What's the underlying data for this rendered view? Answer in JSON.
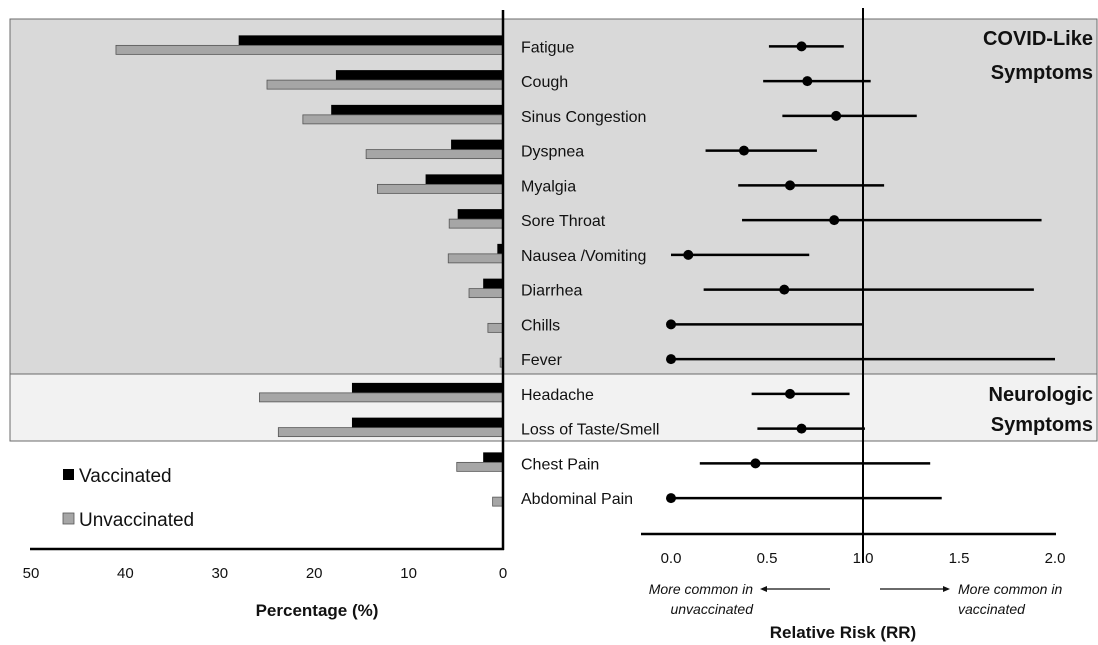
{
  "chart_data": [
    {
      "type": "bar",
      "orientation": "horizontal",
      "direction": "right-to-left",
      "xlabel": "Percentage (%)",
      "xlim": [
        0,
        50
      ],
      "x_ticks": [
        "50",
        "40",
        "30",
        "20",
        "10",
        "0"
      ],
      "categories": [
        "Fatigue",
        "Cough",
        "Sinus Congestion",
        "Dyspnea",
        "Myalgia",
        "Sore Throat",
        "Nausea /Vomiting",
        "Diarrhea",
        "Chills",
        "Fever",
        "Headache",
        "Loss of Taste/Smell",
        "Chest Pain",
        "Abdominal Pain"
      ],
      "series": [
        {
          "name": "Vaccinated",
          "color": "#000000",
          "values": [
            28,
            17.7,
            18.2,
            5.5,
            8.2,
            4.8,
            0.6,
            2.1,
            0,
            0,
            16,
            16,
            2.1,
            0
          ]
        },
        {
          "name": "Unvaccinated",
          "color": "#a6a6a6",
          "values": [
            41,
            25,
            21.2,
            14.5,
            13.3,
            5.7,
            5.8,
            3.6,
            1.6,
            0.3,
            25.8,
            23.8,
            4.9,
            1.1
          ]
        }
      ],
      "legend": {
        "placement": "bottom-left",
        "items": [
          "Vaccinated",
          "Unvaccinated"
        ]
      }
    },
    {
      "type": "scatter",
      "subtype": "forest-plot",
      "xlabel": "Relative Risk (RR)",
      "xlim": [
        0,
        2
      ],
      "x_ticks": [
        "0.0",
        "0.5",
        "1.0",
        "1.5",
        "2.0"
      ],
      "reference_line": 1.0,
      "categories": [
        "Fatigue",
        "Cough",
        "Sinus Congestion",
        "Dyspnea",
        "Myalgia",
        "Sore Throat",
        "Nausea /Vomiting",
        "Diarrhea",
        "Chills",
        "Fever",
        "Headache",
        "Loss of Taste/Smell",
        "Chest Pain",
        "Abdominal Pain"
      ],
      "rr": [
        0.68,
        0.71,
        0.86,
        0.38,
        0.62,
        0.85,
        0.09,
        0.59,
        0.0,
        0.0,
        0.62,
        0.68,
        0.44,
        0.0
      ],
      "ci_low": [
        0.51,
        0.48,
        0.58,
        0.18,
        0.35,
        0.37,
        0.0,
        0.17,
        0.0,
        0.0,
        0.42,
        0.45,
        0.15,
        0.0
      ],
      "ci_high": [
        0.9,
        1.04,
        1.28,
        0.76,
        1.11,
        1.93,
        0.72,
        1.89,
        1.0,
        2.0,
        0.93,
        1.01,
        1.35,
        1.41
      ],
      "annotations": {
        "left_line1": "More common in",
        "left_line2": "unvaccinated",
        "right_line1": "More common in",
        "right_line2": "vaccinated"
      }
    }
  ],
  "groups": [
    {
      "line1": "COVID-Like",
      "line2": "Symptoms",
      "color": "#d9d9d9",
      "start": 0,
      "end": 9
    },
    {
      "line1": "Neurologic",
      "line2": "Symptoms",
      "color": "#f2f2f2",
      "start": 10,
      "end": 11
    }
  ]
}
